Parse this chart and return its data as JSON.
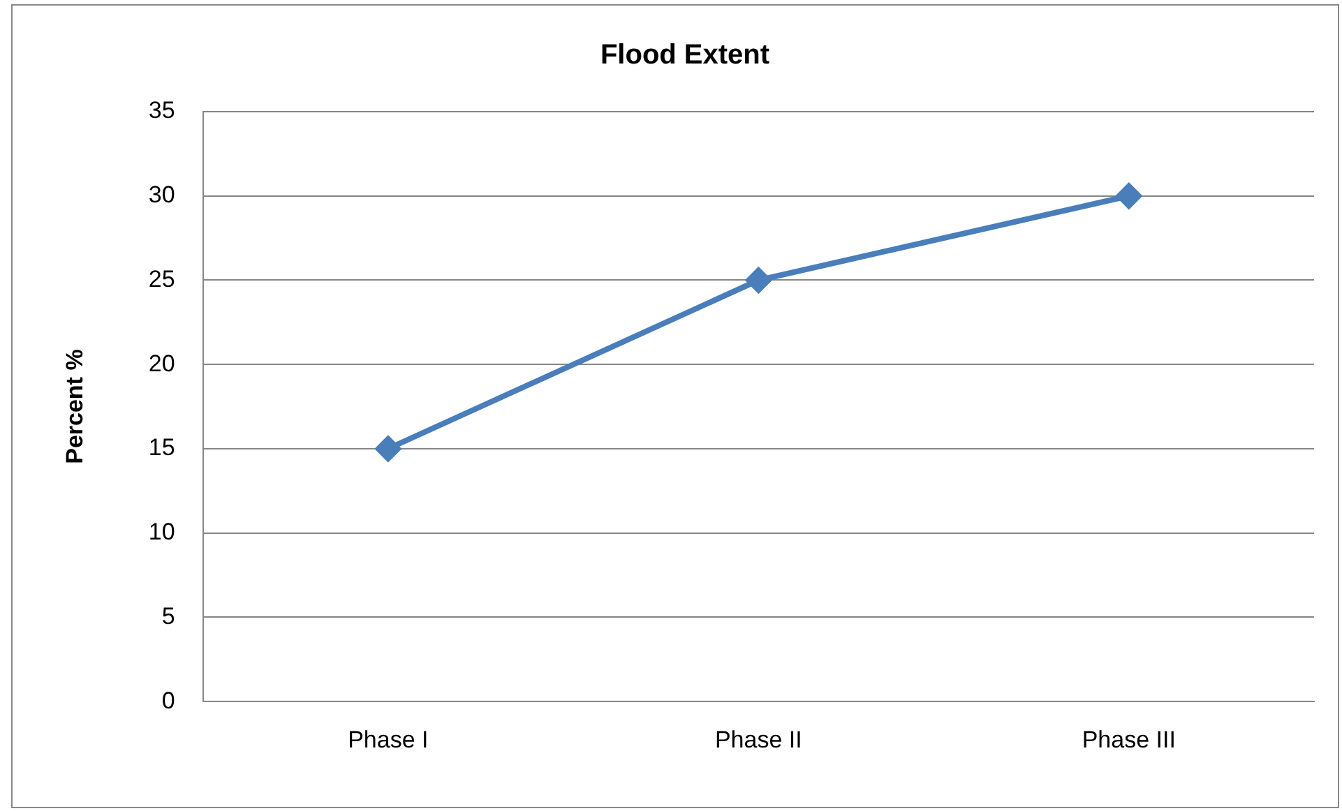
{
  "chart_data": {
    "type": "line",
    "title": "Flood Extent",
    "ylabel": "Percent %",
    "categories": [
      "Phase I",
      "Phase II",
      "Phase III"
    ],
    "series": [
      {
        "color": "#4a7ebb",
        "values": [
          15,
          25,
          30
        ]
      }
    ],
    "ylim": [
      0,
      35
    ],
    "yticks": [
      0,
      5,
      10,
      15,
      20,
      25,
      30,
      35
    ],
    "grid": "y",
    "marker": "diamond"
  }
}
